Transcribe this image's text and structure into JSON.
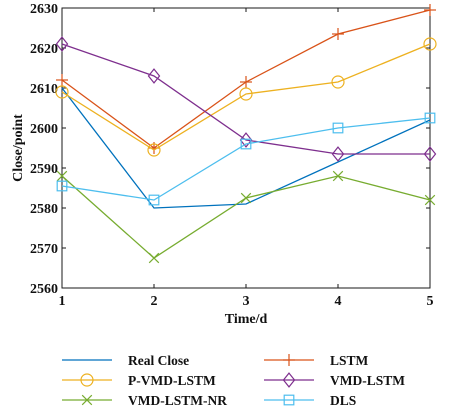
{
  "chart_data": {
    "type": "line",
    "xlabel": "Time/d",
    "ylabel": "Close/point",
    "x": [
      1,
      2,
      3,
      4,
      5
    ],
    "xlim": [
      1,
      5
    ],
    "ylim": [
      2560,
      2630
    ],
    "xticks": [
      "1",
      "2",
      "3",
      "4",
      "5"
    ],
    "yticks": [
      "2560",
      "2570",
      "2580",
      "2590",
      "2600",
      "2610",
      "2620",
      "2630"
    ],
    "grid": false,
    "legend_position": "bottom",
    "series": [
      {
        "name": "Real Close",
        "values": [
          2610,
          2580,
          2581,
          2591.5,
          2602
        ],
        "color": "#0072BD",
        "marker": "none"
      },
      {
        "name": "LSTM",
        "values": [
          2612,
          2595,
          2611.5,
          2623.5,
          2629.5
        ],
        "color": "#D95319",
        "marker": "plus"
      },
      {
        "name": "P-VMD-LSTM",
        "values": [
          2609,
          2594.5,
          2608.5,
          2611.5,
          2621
        ],
        "color": "#EDB120",
        "marker": "circle"
      },
      {
        "name": "VMD-LSTM",
        "values": [
          2621,
          2613,
          2597,
          2593.5,
          2593.5
        ],
        "color": "#7E2F8E",
        "marker": "diamond"
      },
      {
        "name": "VMD-LSTM-NR",
        "values": [
          2588,
          2567.5,
          2582.5,
          2588,
          2582
        ],
        "color": "#77AC30",
        "marker": "x"
      },
      {
        "name": "DLS",
        "values": [
          2585.5,
          2582,
          2596,
          2600,
          2602.5
        ],
        "color": "#4DBEEE",
        "marker": "square"
      }
    ]
  }
}
